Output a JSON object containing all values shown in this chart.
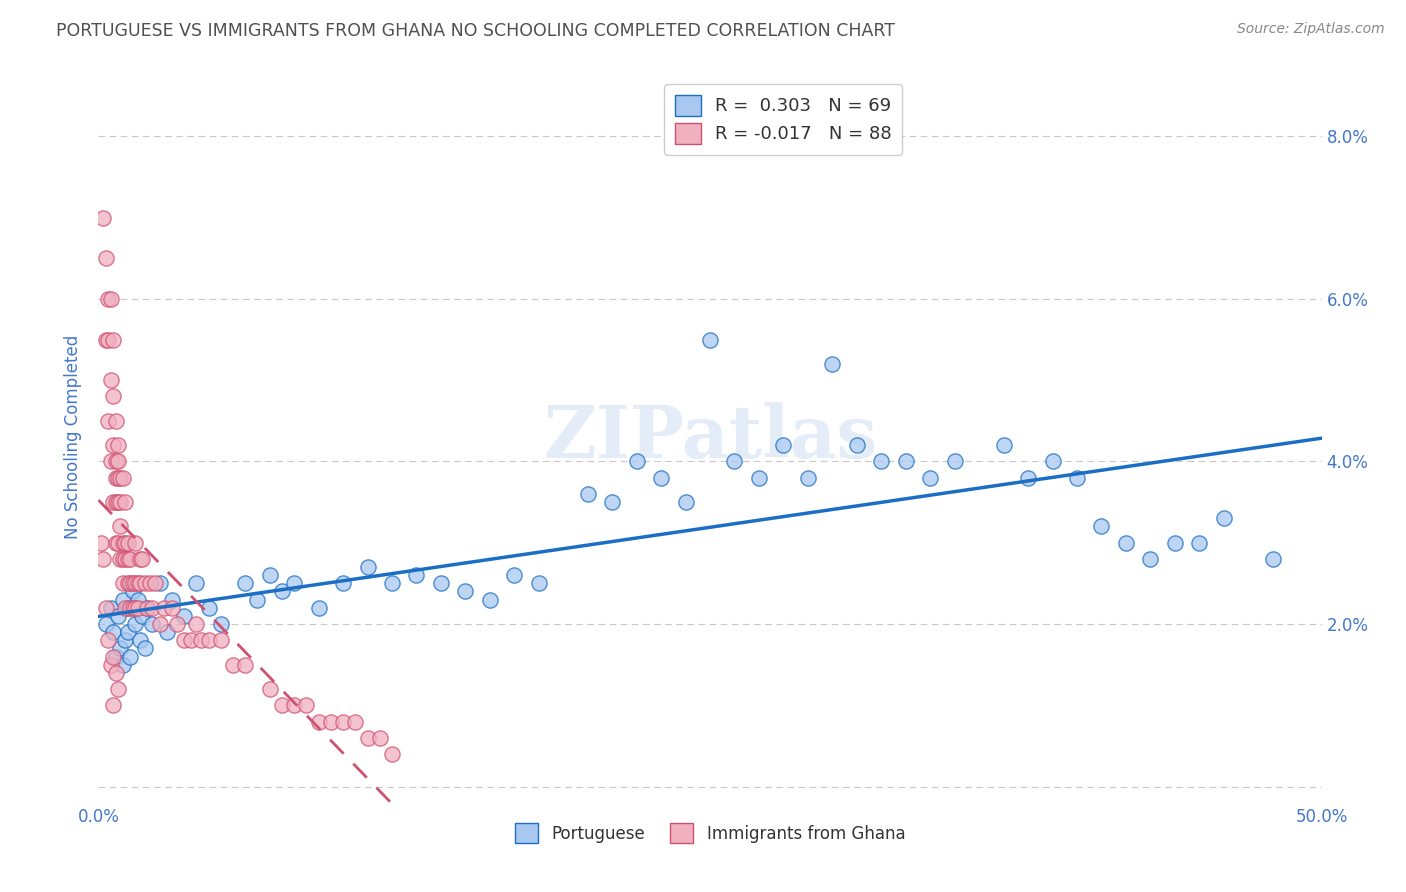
{
  "title": "PORTUGUESE VS IMMIGRANTS FROM GHANA NO SCHOOLING COMPLETED CORRELATION CHART",
  "source": "Source: ZipAtlas.com",
  "ylabel": "No Schooling Completed",
  "xlim": [
    0.0,
    0.5
  ],
  "ylim": [
    -0.002,
    0.088
  ],
  "xticks": [
    0.0,
    0.1,
    0.2,
    0.3,
    0.4,
    0.5
  ],
  "yticks": [
    0.0,
    0.02,
    0.04,
    0.06,
    0.08
  ],
  "xticklabels": [
    "0.0%",
    "",
    "",
    "",
    "",
    "50.0%"
  ],
  "yticklabels_right": [
    "",
    "2.0%",
    "4.0%",
    "6.0%",
    "8.0%"
  ],
  "color_portuguese": "#a8c8f0",
  "color_ghana": "#f0b0c0",
  "color_line_portuguese": "#1a6fc4",
  "color_line_ghana": "#d05070",
  "background_color": "#ffffff",
  "grid_color": "#c8c8c8",
  "title_color": "#505050",
  "tick_color": "#4477cc",
  "watermark": "ZIPatlas",
  "portuguese_x": [
    0.003,
    0.005,
    0.006,
    0.007,
    0.008,
    0.009,
    0.01,
    0.01,
    0.011,
    0.012,
    0.012,
    0.013,
    0.014,
    0.015,
    0.016,
    0.017,
    0.018,
    0.019,
    0.02,
    0.022,
    0.025,
    0.028,
    0.03,
    0.035,
    0.04,
    0.045,
    0.05,
    0.06,
    0.065,
    0.07,
    0.075,
    0.08,
    0.09,
    0.1,
    0.11,
    0.12,
    0.13,
    0.14,
    0.15,
    0.16,
    0.17,
    0.18,
    0.2,
    0.21,
    0.22,
    0.23,
    0.24,
    0.25,
    0.26,
    0.27,
    0.28,
    0.29,
    0.3,
    0.31,
    0.32,
    0.33,
    0.34,
    0.35,
    0.37,
    0.38,
    0.39,
    0.4,
    0.41,
    0.42,
    0.43,
    0.44,
    0.45,
    0.46,
    0.48
  ],
  "portuguese_y": [
    0.02,
    0.022,
    0.019,
    0.016,
    0.021,
    0.017,
    0.023,
    0.015,
    0.018,
    0.019,
    0.022,
    0.016,
    0.024,
    0.02,
    0.023,
    0.018,
    0.021,
    0.017,
    0.022,
    0.02,
    0.025,
    0.019,
    0.023,
    0.021,
    0.025,
    0.022,
    0.02,
    0.025,
    0.023,
    0.026,
    0.024,
    0.025,
    0.022,
    0.025,
    0.027,
    0.025,
    0.026,
    0.025,
    0.024,
    0.023,
    0.026,
    0.025,
    0.036,
    0.035,
    0.04,
    0.038,
    0.035,
    0.055,
    0.04,
    0.038,
    0.042,
    0.038,
    0.052,
    0.042,
    0.04,
    0.04,
    0.038,
    0.04,
    0.042,
    0.038,
    0.04,
    0.038,
    0.032,
    0.03,
    0.028,
    0.03,
    0.03,
    0.033,
    0.028
  ],
  "ghana_x": [
    0.001,
    0.002,
    0.002,
    0.003,
    0.003,
    0.004,
    0.004,
    0.004,
    0.005,
    0.005,
    0.005,
    0.006,
    0.006,
    0.006,
    0.006,
    0.007,
    0.007,
    0.007,
    0.007,
    0.007,
    0.008,
    0.008,
    0.008,
    0.008,
    0.008,
    0.009,
    0.009,
    0.009,
    0.009,
    0.01,
    0.01,
    0.01,
    0.01,
    0.011,
    0.011,
    0.011,
    0.011,
    0.012,
    0.012,
    0.012,
    0.013,
    0.013,
    0.013,
    0.014,
    0.014,
    0.015,
    0.015,
    0.015,
    0.016,
    0.016,
    0.017,
    0.017,
    0.018,
    0.019,
    0.02,
    0.021,
    0.022,
    0.023,
    0.025,
    0.027,
    0.03,
    0.032,
    0.035,
    0.038,
    0.04,
    0.042,
    0.045,
    0.05,
    0.055,
    0.06,
    0.07,
    0.075,
    0.08,
    0.085,
    0.09,
    0.095,
    0.1,
    0.105,
    0.11,
    0.115,
    0.12,
    0.003,
    0.004,
    0.005,
    0.006,
    0.006,
    0.007,
    0.008
  ],
  "ghana_y": [
    0.03,
    0.028,
    0.07,
    0.065,
    0.055,
    0.06,
    0.045,
    0.055,
    0.06,
    0.04,
    0.05,
    0.055,
    0.042,
    0.035,
    0.048,
    0.038,
    0.045,
    0.035,
    0.04,
    0.03,
    0.038,
    0.042,
    0.03,
    0.035,
    0.04,
    0.035,
    0.028,
    0.032,
    0.038,
    0.03,
    0.038,
    0.028,
    0.025,
    0.03,
    0.028,
    0.035,
    0.022,
    0.025,
    0.03,
    0.028,
    0.022,
    0.028,
    0.025,
    0.022,
    0.025,
    0.025,
    0.03,
    0.022,
    0.025,
    0.022,
    0.028,
    0.025,
    0.028,
    0.025,
    0.022,
    0.025,
    0.022,
    0.025,
    0.02,
    0.022,
    0.022,
    0.02,
    0.018,
    0.018,
    0.02,
    0.018,
    0.018,
    0.018,
    0.015,
    0.015,
    0.012,
    0.01,
    0.01,
    0.01,
    0.008,
    0.008,
    0.008,
    0.008,
    0.006,
    0.006,
    0.004,
    0.022,
    0.018,
    0.015,
    0.01,
    0.016,
    0.014,
    0.012
  ]
}
